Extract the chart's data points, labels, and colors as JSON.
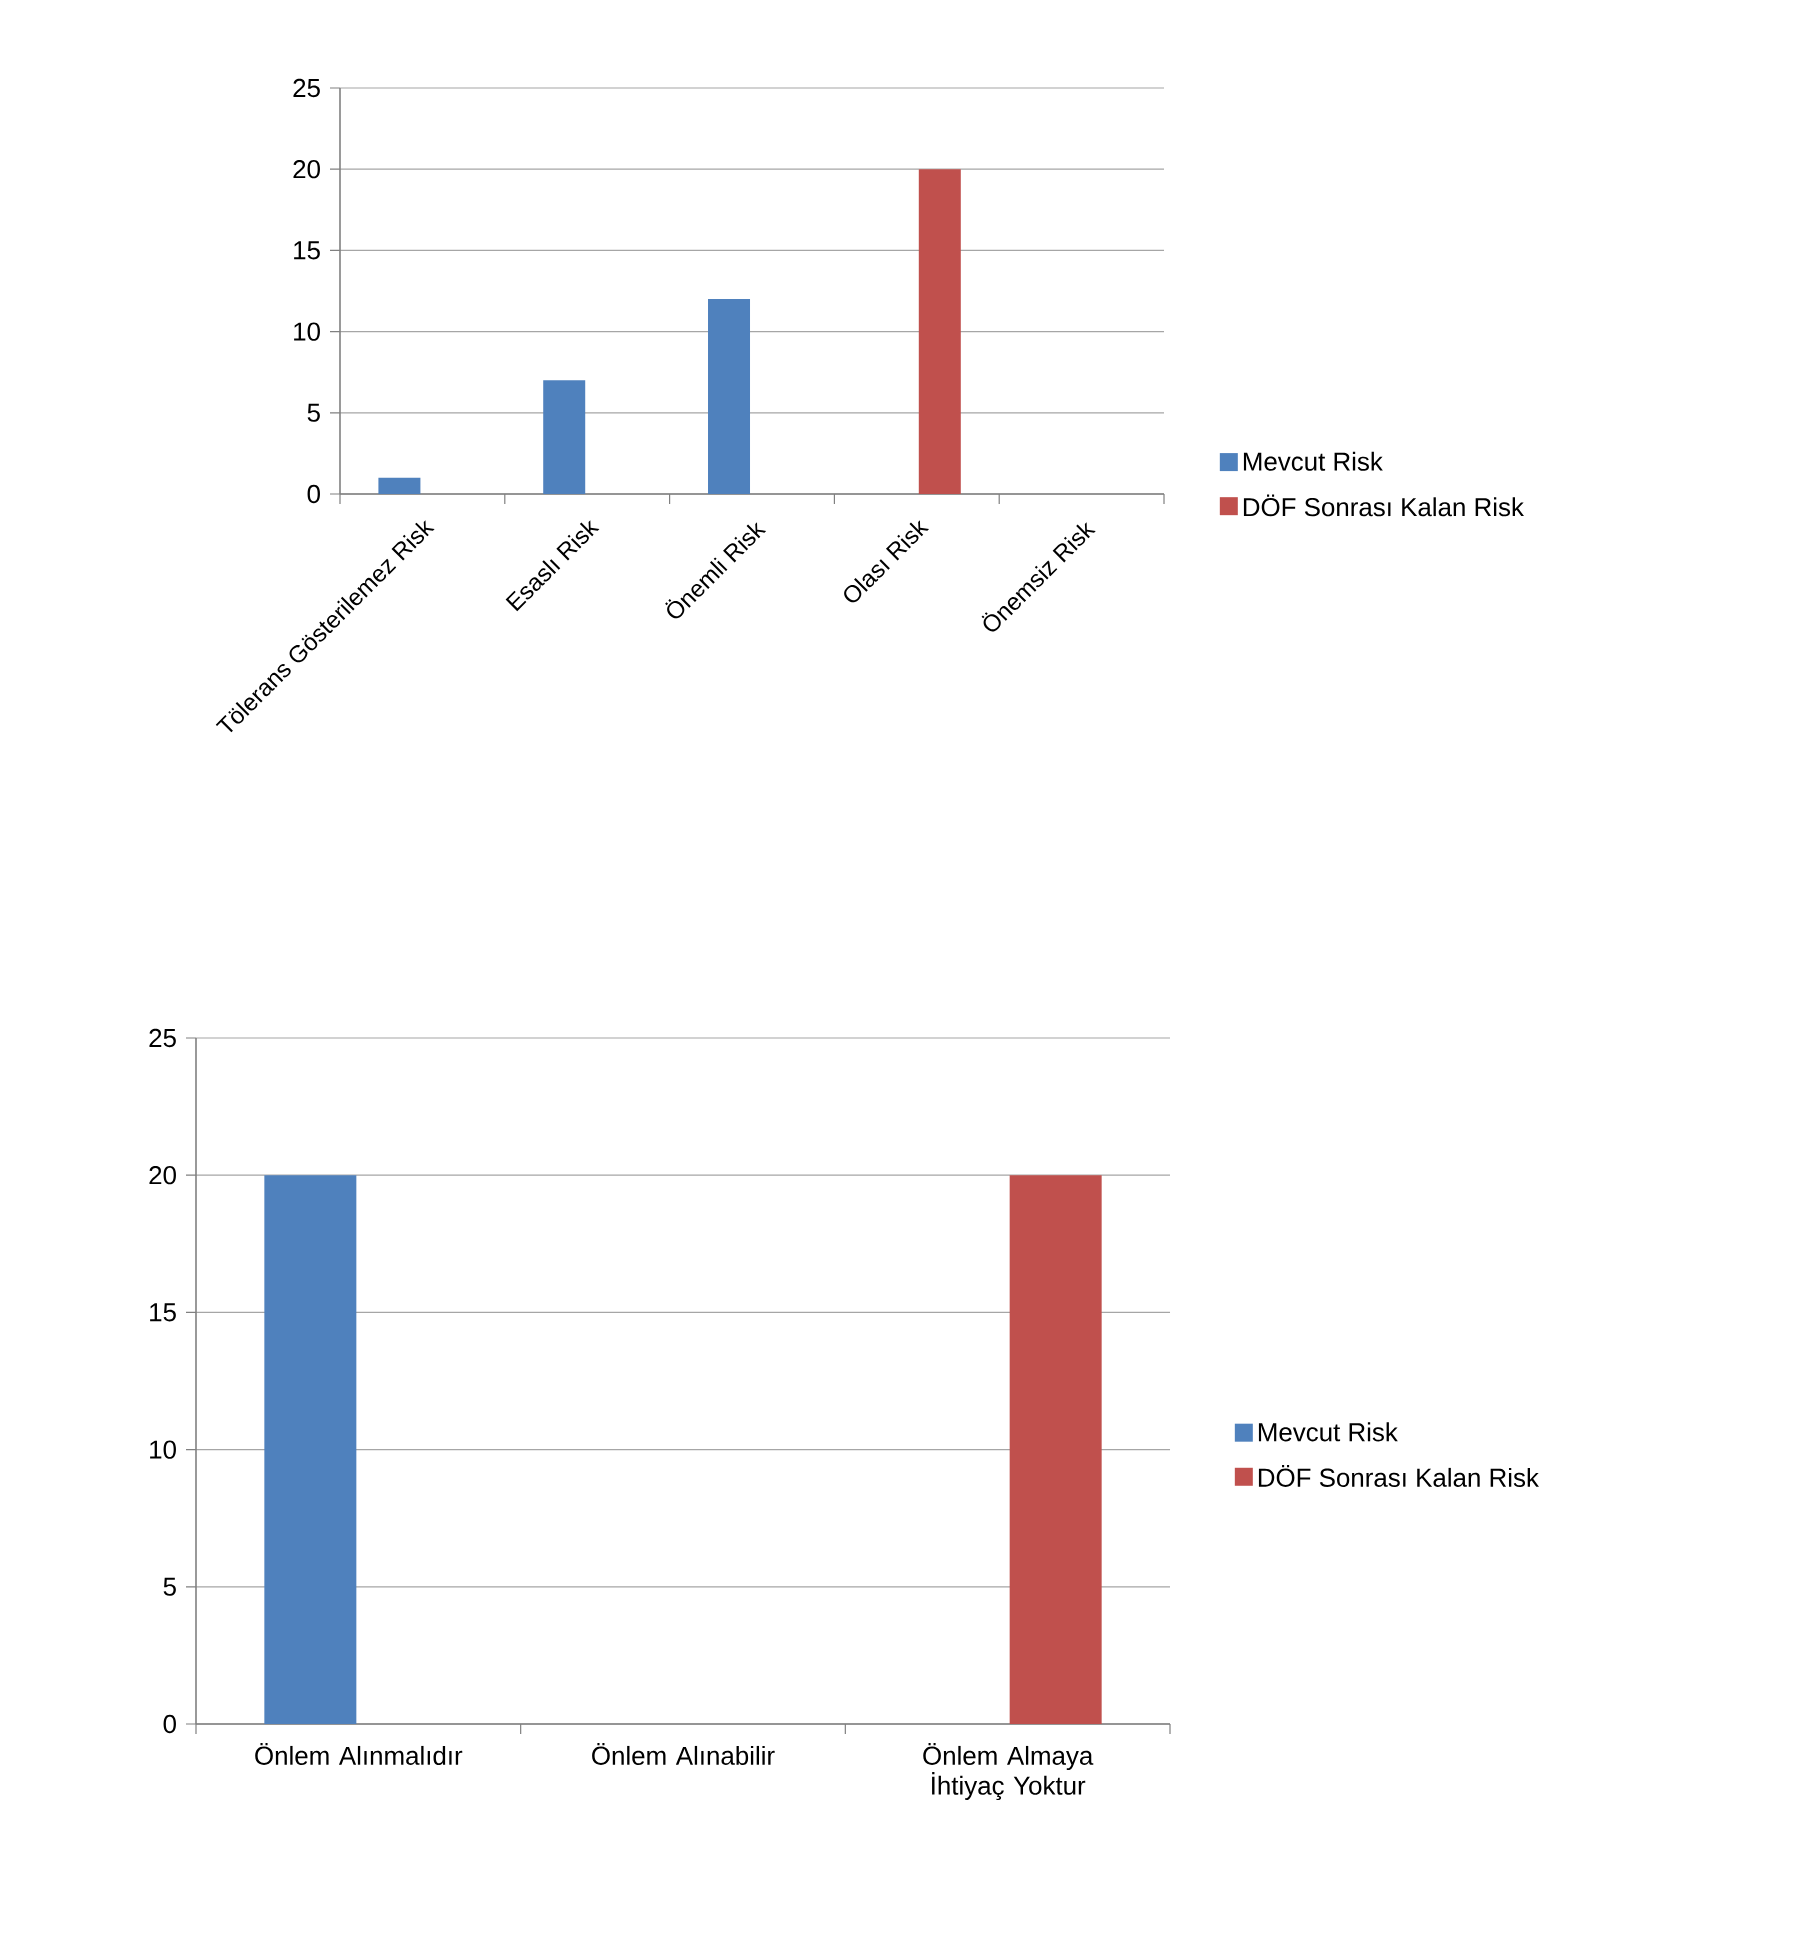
{
  "chart_data": [
    {
      "type": "bar",
      "categories": [
        "Tölerans Gösterilemez Risk",
        "Esaslı Risk",
        "Önemli Risk",
        "Olası Risk",
        "Önemsiz Risk"
      ],
      "series": [
        {
          "name": "Mevcut Risk",
          "color": "#4f81bd",
          "values": [
            1,
            7,
            12,
            null,
            null
          ]
        },
        {
          "name": "DÖF Sonrası Kalan Risk",
          "color": "#c0504d",
          "values": [
            null,
            null,
            null,
            20,
            null
          ]
        }
      ],
      "ylim": [
        0,
        25
      ],
      "yticks": [
        0,
        5,
        10,
        15,
        20,
        25
      ],
      "grid": "y",
      "legend": "right"
    },
    {
      "type": "bar",
      "categories": [
        "Önlem Alınmalıdır",
        "Önlem Alınabilir",
        "Önlem Almaya İhtiyaç Yoktur"
      ],
      "series": [
        {
          "name": "Mevcut Risk",
          "color": "#4f81bd",
          "values": [
            20,
            null,
            null
          ]
        },
        {
          "name": "DÖF Sonrası Kalan Risk",
          "color": "#c0504d",
          "values": [
            null,
            null,
            20
          ]
        }
      ],
      "ylim": [
        0,
        25
      ],
      "yticks": [
        0,
        5,
        10,
        15,
        20,
        25
      ],
      "grid": "y",
      "legend": "right"
    }
  ]
}
